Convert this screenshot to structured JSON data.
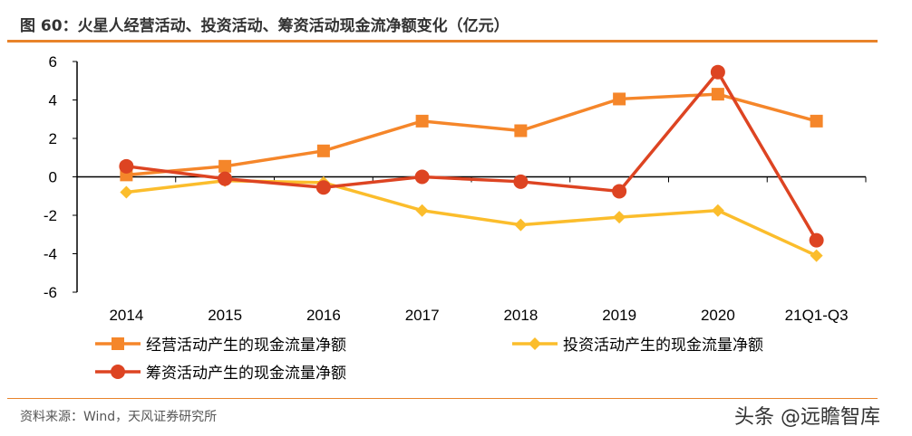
{
  "title": "图 60：火星人经营活动、投资活动、筹资活动现金流净额变化（亿元）",
  "source": "资料来源：Wind，天风证券研究所",
  "watermark": "头条 @远瞻智库",
  "chart_data": {
    "type": "line",
    "categories": [
      "2014",
      "2015",
      "2016",
      "2017",
      "2018",
      "2019",
      "2020",
      "21Q1-Q3"
    ],
    "ylim": [
      -6,
      6
    ],
    "yticks": [
      6,
      4,
      2,
      0,
      -2,
      -4,
      -6
    ],
    "legend_placement": "bottom",
    "grid": false,
    "series": [
      {
        "name": "经营活动产生的现金流量净额",
        "color": "#f5862a",
        "marker": "square",
        "values": [
          0.1,
          0.55,
          1.35,
          2.9,
          2.4,
          4.05,
          4.3,
          2.9
        ]
      },
      {
        "name": "投资活动产生的现金流量净额",
        "color": "#fbbd2c",
        "marker": "diamond",
        "values": [
          -0.8,
          -0.2,
          -0.3,
          -1.75,
          -2.5,
          -2.1,
          -1.75,
          -4.1
        ]
      },
      {
        "name": "筹资活动产生的现金流量净额",
        "color": "#dd4422",
        "marker": "circle",
        "values": [
          0.55,
          -0.1,
          -0.55,
          0,
          -0.25,
          -0.75,
          5.45,
          -3.3
        ]
      }
    ]
  }
}
